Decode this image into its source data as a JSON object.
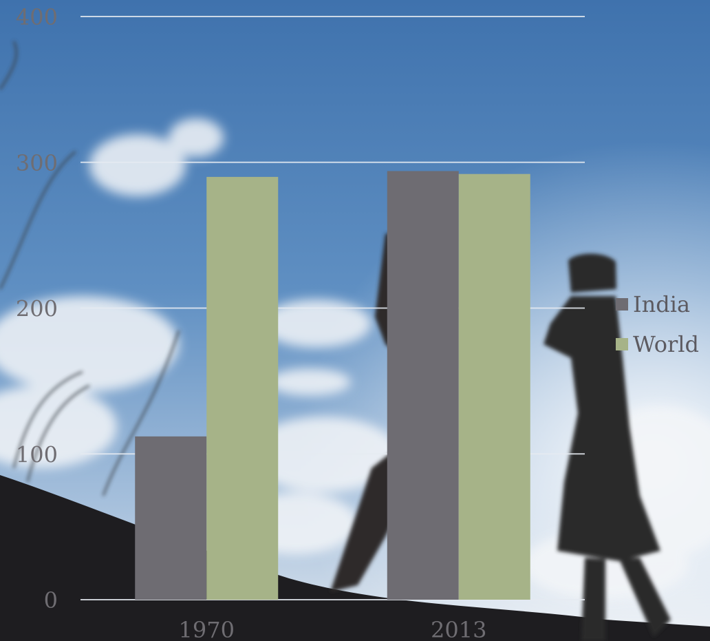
{
  "colors": {
    "india": "#6e6c72",
    "world": "#a6b388",
    "grid": "#e8edf3",
    "text": "#6f6d72"
  },
  "chart_data": {
    "type": "bar",
    "title": "",
    "xlabel": "",
    "ylabel": "",
    "categories": [
      "1970",
      "2013"
    ],
    "series": [
      {
        "name": "India",
        "values": [
          112,
          294
        ]
      },
      {
        "name": "World",
        "values": [
          290,
          292
        ]
      }
    ],
    "ylim": [
      0,
      400
    ],
    "yticks": [
      0,
      100,
      200,
      300,
      400
    ],
    "grid": true,
    "legend_position": "right"
  }
}
